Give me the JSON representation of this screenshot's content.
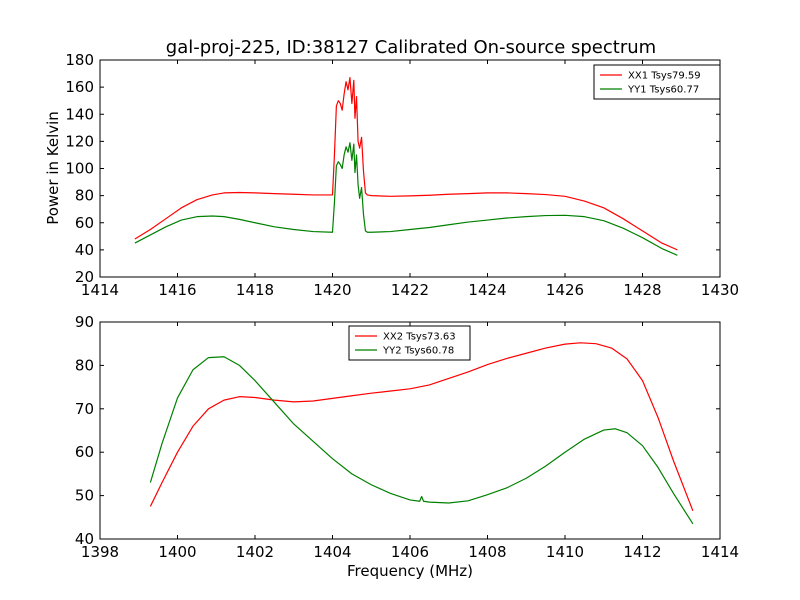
{
  "figure": {
    "title": "gal-proj-225, ID:38127 Calibrated On-source spectrum"
  },
  "chart_data": [
    {
      "type": "line",
      "title": "gal-proj-225, ID:38127 Calibrated On-source spectrum",
      "xlabel": "",
      "ylabel": "Power in Kelvin",
      "xlim": [
        1414,
        1430
      ],
      "ylim": [
        20,
        180
      ],
      "xticks": [
        1414,
        1416,
        1418,
        1420,
        1422,
        1424,
        1426,
        1428,
        1430
      ],
      "yticks": [
        20,
        40,
        60,
        80,
        100,
        120,
        140,
        160,
        180
      ],
      "grid": false,
      "legend": "top-right",
      "series": [
        {
          "name": "XX1 Tsys79.59",
          "color": "#ff0000",
          "x": [
            1414.9,
            1415.3,
            1415.7,
            1416.1,
            1416.5,
            1416.9,
            1417.2,
            1417.6,
            1418.0,
            1418.5,
            1419.0,
            1419.5,
            1420.0,
            1420.05,
            1420.1,
            1420.15,
            1420.2,
            1420.25,
            1420.3,
            1420.35,
            1420.4,
            1420.45,
            1420.5,
            1420.55,
            1420.58,
            1420.62,
            1420.66,
            1420.7,
            1420.75,
            1420.8,
            1420.85,
            1420.9,
            1421.0,
            1421.5,
            1422.0,
            1422.5,
            1423.0,
            1423.5,
            1424.0,
            1424.5,
            1425.0,
            1425.5,
            1426.0,
            1426.5,
            1427.0,
            1427.5,
            1428.0,
            1428.5,
            1428.9
          ],
          "y": [
            48,
            55,
            63,
            71,
            77,
            80.5,
            82,
            82.3,
            82,
            81.5,
            81,
            80.5,
            80.5,
            110,
            146,
            150,
            148,
            143,
            155,
            164,
            158,
            167,
            148,
            165,
            137,
            153,
            120,
            115,
            123,
            98,
            82,
            80.5,
            80,
            79.5,
            79.8,
            80.3,
            81,
            81.5,
            82,
            82,
            81.5,
            80.8,
            79.5,
            76,
            71,
            63,
            54,
            45,
            40
          ]
        },
        {
          "name": "YY1 Tsys60.77",
          "color": "#008000",
          "x": [
            1414.9,
            1415.3,
            1415.7,
            1416.1,
            1416.5,
            1416.9,
            1417.2,
            1417.6,
            1418.0,
            1418.5,
            1419.0,
            1419.5,
            1420.0,
            1420.05,
            1420.1,
            1420.15,
            1420.2,
            1420.25,
            1420.3,
            1420.35,
            1420.4,
            1420.45,
            1420.5,
            1420.55,
            1420.58,
            1420.62,
            1420.66,
            1420.7,
            1420.75,
            1420.8,
            1420.85,
            1420.9,
            1421.0,
            1421.5,
            1422.0,
            1422.5,
            1423.0,
            1423.5,
            1424.0,
            1424.5,
            1425.0,
            1425.5,
            1426.0,
            1426.5,
            1427.0,
            1427.5,
            1428.0,
            1428.5,
            1428.9
          ],
          "y": [
            45,
            51,
            57,
            62,
            64.5,
            65,
            64.5,
            62.5,
            60,
            57,
            55,
            53.5,
            53,
            75,
            102,
            105,
            103,
            100,
            110,
            116,
            112,
            119,
            106,
            118,
            97,
            110,
            88,
            78,
            86,
            66,
            54,
            53,
            53,
            53.5,
            55,
            56.5,
            58.5,
            60.5,
            62,
            63.5,
            64.5,
            65.3,
            65.5,
            64.5,
            61.5,
            56,
            49,
            41,
            36
          ]
        }
      ]
    },
    {
      "type": "line",
      "title": "",
      "xlabel": "Frequency (MHz)",
      "ylabel": "",
      "xlim": [
        1398,
        1414
      ],
      "ylim": [
        40,
        90
      ],
      "xticks": [
        1398,
        1400,
        1402,
        1404,
        1406,
        1408,
        1410,
        1412,
        1414
      ],
      "yticks": [
        40,
        50,
        60,
        70,
        80,
        90
      ],
      "grid": false,
      "legend": "upper-center",
      "series": [
        {
          "name": "XX2 Tsys73.63",
          "color": "#ff0000",
          "x": [
            1399.3,
            1399.6,
            1400.0,
            1400.4,
            1400.8,
            1401.2,
            1401.6,
            1402.0,
            1402.5,
            1403.0,
            1403.5,
            1404.0,
            1404.5,
            1405.0,
            1405.5,
            1406.0,
            1406.5,
            1407.0,
            1407.5,
            1408.0,
            1408.5,
            1409.0,
            1409.5,
            1410.0,
            1410.4,
            1410.8,
            1411.2,
            1411.6,
            1412.0,
            1412.4,
            1412.8,
            1413.3
          ],
          "y": [
            47.5,
            53,
            60,
            66,
            70,
            72,
            72.8,
            72.6,
            72,
            71.6,
            71.8,
            72.4,
            73,
            73.6,
            74.1,
            74.6,
            75.5,
            77,
            78.5,
            80.2,
            81.6,
            82.8,
            84,
            84.9,
            85.2,
            85,
            84,
            81.5,
            76.5,
            68,
            58,
            46.5
          ]
        },
        {
          "name": "YY2 Tsys60.78",
          "color": "#008000",
          "x": [
            1399.3,
            1399.6,
            1400.0,
            1400.4,
            1400.8,
            1401.2,
            1401.6,
            1402.0,
            1402.5,
            1403.0,
            1403.5,
            1404.0,
            1404.5,
            1405.0,
            1405.5,
            1406.0,
            1406.25,
            1406.3,
            1406.35,
            1406.5,
            1407.0,
            1407.5,
            1408.0,
            1408.5,
            1409.0,
            1409.5,
            1410.0,
            1410.5,
            1411.0,
            1411.3,
            1411.6,
            1412.0,
            1412.4,
            1412.8,
            1413.3
          ],
          "y": [
            53,
            62,
            72.5,
            79,
            81.8,
            82,
            80,
            76.5,
            71.5,
            66.5,
            62.5,
            58.5,
            55,
            52.5,
            50.5,
            49,
            48.7,
            49.8,
            48.7,
            48.5,
            48.3,
            48.8,
            50.2,
            51.8,
            54,
            56.8,
            60,
            63,
            65.1,
            65.4,
            64.5,
            61.5,
            56.5,
            50.5,
            43.5
          ]
        }
      ]
    }
  ]
}
